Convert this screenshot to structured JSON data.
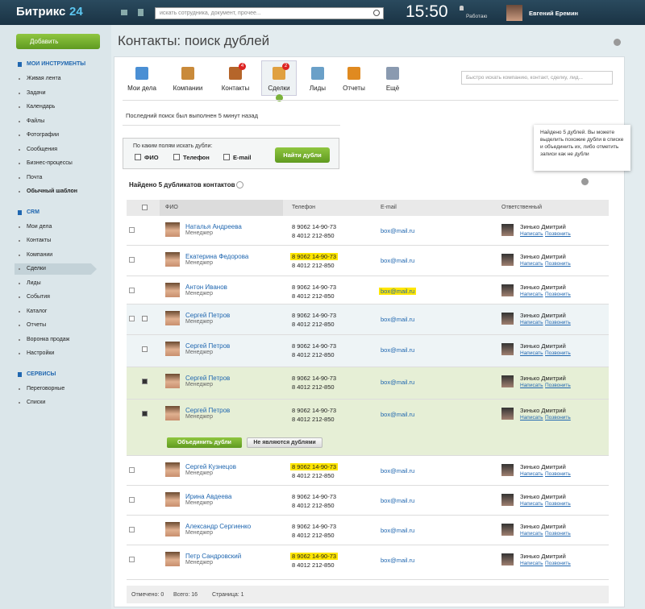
{
  "header": {
    "logo": "Битрикс",
    "logo_suffix": "24",
    "search_placeholder": "искать сотрудника, документ, прочее...",
    "time": "15:50",
    "status": "Работаю",
    "user": "Евгений Еремин"
  },
  "sidebar": {
    "add_button": "Добавить",
    "sections": [
      {
        "title": "МОИ ИНСТРУМЕНТЫ",
        "items": [
          {
            "label": "Живая лента"
          },
          {
            "label": "Задачи"
          },
          {
            "label": "Календарь"
          },
          {
            "label": "Файлы"
          },
          {
            "label": "Фотографии"
          },
          {
            "label": "Сообщения"
          },
          {
            "label": "Бизнес-процессы"
          },
          {
            "label": "Почта"
          },
          {
            "label": "Обычный шаблон",
            "bold": true
          }
        ]
      },
      {
        "title": "CRM",
        "items": [
          {
            "label": "Мои дела"
          },
          {
            "label": "Контакты"
          },
          {
            "label": "Компании"
          },
          {
            "label": "Сделки",
            "active": true
          },
          {
            "label": "Лиды"
          },
          {
            "label": "События"
          },
          {
            "label": "Каталог"
          },
          {
            "label": "Отчеты"
          },
          {
            "label": "Воронка продаж"
          },
          {
            "label": "Настройки"
          }
        ]
      },
      {
        "title": "СЕРВИСЫ",
        "items": [
          {
            "label": "Переговорные"
          },
          {
            "label": "Списки"
          }
        ]
      }
    ]
  },
  "page_title": "Контакты: поиск дублей",
  "toolbar": {
    "items": [
      {
        "label": "Мои дела",
        "color": "#4a8fd4"
      },
      {
        "label": "Компании",
        "color": "#c98a3a"
      },
      {
        "label": "Контакты",
        "color": "#b5652a",
        "badge": "4"
      },
      {
        "label": "Сделки",
        "color": "#e0a040",
        "badge": "2",
        "active": true
      },
      {
        "label": "Лиды",
        "color": "#6aa0c8"
      },
      {
        "label": "Отчеты",
        "color": "#e08a20"
      },
      {
        "label": "Ещё",
        "color": "#8a9ab0"
      }
    ],
    "search_placeholder": "Быстро искать компанию, контакт, сделку, лид..."
  },
  "last_search": "Последний поиск был выполнен 5 минут назад",
  "filter": {
    "label": "По каким полям искать дубли:",
    "options": [
      "ФИО",
      "Телефон",
      "E-mail"
    ],
    "button": "Найти дубли"
  },
  "tooltip": "Найдено 5 дублей. Вы можете выделить похожие дубли в списке и объединить их, либо отметить записи как не дубли",
  "found": "Найдено 5 дубликатов контактов",
  "table": {
    "columns": [
      "ФИО",
      "Телефон",
      "E-mail",
      "Ответственный"
    ],
    "rows": [
      {
        "name": "Наталья Андреева",
        "role": "Менеджер",
        "phones": [
          "8 9062 14-90-73",
          "8 4012 212-850"
        ],
        "email": "box@mail.ru",
        "responsible": "Зинько Дмитрий",
        "actions": [
          "Написать",
          "Позвонить"
        ],
        "toggle": "collapsed"
      },
      {
        "name": "Екатерина Федорова",
        "role": "Менеджер",
        "phones": [
          "8 9062 14-90-73",
          "8 4012 212-850"
        ],
        "email": "box@mail.ru",
        "responsible": "Зинько Дмитрий",
        "actions": [
          "Написать",
          "Позвонить"
        ],
        "toggle": "collapsed",
        "highlight": "phone"
      },
      {
        "name": "Антон Иванов",
        "role": "Менеджер",
        "phones": [
          "8 9062 14-90-73",
          "8 4012 212-850"
        ],
        "email": "box@mail.ru",
        "responsible": "Зинько Дмитрий",
        "actions": [
          "Написать",
          "Позвонить"
        ],
        "toggle": "collapsed",
        "highlight": "email"
      },
      {
        "name": "Сергей Петров",
        "role": "Менеджер",
        "phones": [
          "8 9062 14-90-73",
          "8 4012 212-850"
        ],
        "email": "box@mail.ru",
        "responsible": "Зинько Дмитрий",
        "actions": [
          "Написать",
          "Позвонить"
        ],
        "toggle": "expanded",
        "checkbox": "unchecked",
        "state": "group"
      },
      {
        "name": "Сергей Петров",
        "role": "Менеджер",
        "phones": [
          "8 9062 14-90-73",
          "8 4012 212-850"
        ],
        "email": "box@mail.ru",
        "responsible": "Зинько Дмитрий",
        "actions": [
          "Написать",
          "Позвонить"
        ],
        "checkbox": "unchecked",
        "state": "group"
      },
      {
        "name": "Сергей Петров",
        "role": "Менеджер",
        "phones": [
          "8 9062 14-90-73",
          "8 4012 212-850"
        ],
        "email": "box@mail.ru",
        "responsible": "Зинько Дмитрий",
        "actions": [
          "Написать",
          "Позвонить"
        ],
        "checkbox": "checked",
        "state": "selected"
      },
      {
        "name": "Сергей Петров",
        "role": "Менеджер",
        "phones": [
          "8 9062 14-90-73",
          "8 4012 212-850"
        ],
        "email": "box@mail.ru",
        "responsible": "Зинько Дмитрий",
        "actions": [
          "Написать",
          "Позвонить"
        ],
        "checkbox": "checked",
        "state": "selected",
        "buttons": [
          "Объединить дубли",
          "Не являются дублями"
        ]
      },
      {
        "name": "Сергей Кузнецов",
        "role": "Менеджер",
        "phones": [
          "8 9062 14-90-73",
          "8 4012 212-850"
        ],
        "email": "box@mail.ru",
        "responsible": "Зинько Дмитрий",
        "actions": [
          "Написать",
          "Позвонить"
        ],
        "toggle": "collapsed",
        "highlight": "phone"
      },
      {
        "name": "Ирина Авдеева",
        "role": "Менеджер",
        "phones": [
          "8 9062 14-90-73",
          "8 4012 212-850"
        ],
        "email": "box@mail.ru",
        "responsible": "Зинько Дмитрий",
        "actions": [
          "Написать",
          "Позвонить"
        ],
        "toggle": "collapsed"
      },
      {
        "name": "Александр Сергиенко",
        "role": "Менеджер",
        "phones": [
          "8 9062 14-90-73",
          "8 4012 212-850"
        ],
        "email": "box@mail.ru",
        "responsible": "Зинько Дмитрий",
        "actions": [
          "Написать",
          "Позвонить"
        ],
        "toggle": "collapsed"
      },
      {
        "name": "Петр Сандровский",
        "role": "Менеджер",
        "phones": [
          "8 9062 14-90-73",
          "8 4012 212-850"
        ],
        "email": "box@mail.ru",
        "responsible": "Зинько Дмитрий",
        "actions": [
          "Написать",
          "Позвонить"
        ],
        "toggle": "collapsed",
        "highlight": "phone"
      }
    ]
  },
  "footer": [
    "Отмечено: 0",
    "Всего: 16",
    "Страница: 1"
  ]
}
